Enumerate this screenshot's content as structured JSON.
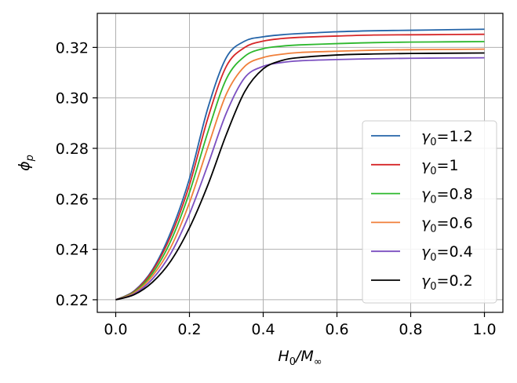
{
  "chart_data": {
    "type": "line",
    "title": "",
    "xlabel_main": "H",
    "xlabel_sub": "0",
    "xlabel_sep": "/M",
    "xlabel_sub2": "∞",
    "ylabel_main": "ϕ",
    "ylabel_sub": "p",
    "xlim": [
      -0.05,
      1.05
    ],
    "ylim": [
      0.215,
      0.3335
    ],
    "xticks": [
      0.0,
      0.2,
      0.4,
      0.6,
      0.8,
      1.0
    ],
    "xtick_labels": [
      "0.0",
      "0.2",
      "0.4",
      "0.6",
      "0.8",
      "1.0"
    ],
    "yticks": [
      0.22,
      0.24,
      0.26,
      0.28,
      0.3,
      0.32
    ],
    "ytick_labels": [
      "0.22",
      "0.24",
      "0.26",
      "0.28",
      "0.30",
      "0.32"
    ],
    "grid": true,
    "legend_position": "lower-right",
    "x": [
      0.0,
      0.05,
      0.1,
      0.15,
      0.2,
      0.25,
      0.3,
      0.35,
      0.4,
      0.45,
      0.5,
      0.6,
      0.7,
      0.8,
      0.9,
      1.0
    ],
    "series": [
      {
        "name": "γ₀=1.2",
        "label_main": "γ",
        "label_sub": "0",
        "label_val": "=1.2",
        "color": "#2464a8",
        "values": [
          0.22,
          0.2235,
          0.232,
          0.247,
          0.268,
          0.296,
          0.316,
          0.3225,
          0.3242,
          0.325,
          0.3255,
          0.3262,
          0.3266,
          0.3268,
          0.327,
          0.3272
        ]
      },
      {
        "name": "γ₀=1",
        "label_main": "γ",
        "label_sub": "0",
        "label_val": "=1",
        "color": "#d62628",
        "values": [
          0.22,
          0.2233,
          0.2315,
          0.2455,
          0.2655,
          0.292,
          0.3125,
          0.32,
          0.3225,
          0.3235,
          0.324,
          0.3245,
          0.3249,
          0.325,
          0.3251,
          0.3252
        ]
      },
      {
        "name": "γ₀=0.8",
        "label_main": "γ",
        "label_sub": "0",
        "label_val": "=0.8",
        "color": "#2db82d",
        "values": [
          0.22,
          0.223,
          0.2305,
          0.2435,
          0.2625,
          0.2865,
          0.3075,
          0.3165,
          0.3195,
          0.3205,
          0.321,
          0.3215,
          0.3219,
          0.3221,
          0.3222,
          0.3223
        ]
      },
      {
        "name": "γ₀=0.6",
        "label_main": "γ",
        "label_sub": "0",
        "label_val": "=0.6",
        "color": "#f07f3a",
        "values": [
          0.22,
          0.2227,
          0.2295,
          0.241,
          0.2585,
          0.2805,
          0.3015,
          0.3125,
          0.316,
          0.3173,
          0.318,
          0.3185,
          0.3189,
          0.3191,
          0.3192,
          0.3193
        ]
      },
      {
        "name": "γ₀=0.4",
        "label_main": "γ",
        "label_sub": "0",
        "label_val": "=0.4",
        "color": "#7b4fc0",
        "values": [
          0.22,
          0.2223,
          0.2283,
          0.2385,
          0.254,
          0.2735,
          0.294,
          0.308,
          0.3125,
          0.314,
          0.3147,
          0.3152,
          0.3155,
          0.3157,
          0.3158,
          0.3159
        ]
      },
      {
        "name": "γ₀=0.2",
        "label_main": "γ",
        "label_sub": "0",
        "label_val": "=0.2",
        "color": "#000000",
        "values": [
          0.22,
          0.222,
          0.227,
          0.2355,
          0.2485,
          0.2655,
          0.2855,
          0.3025,
          0.3115,
          0.3148,
          0.316,
          0.317,
          0.3174,
          0.3176,
          0.3177,
          0.3178
        ]
      }
    ]
  }
}
